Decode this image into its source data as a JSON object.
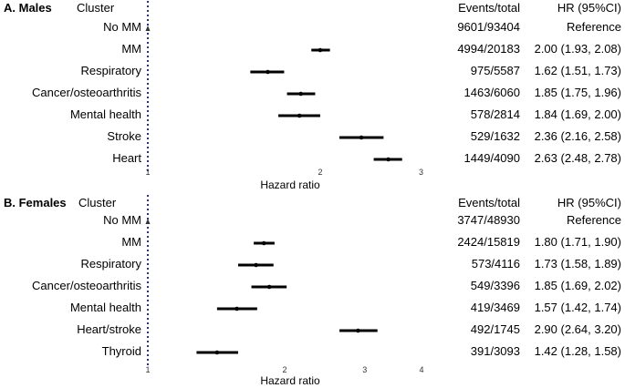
{
  "chart_data": [
    {
      "type": "forest",
      "panel_title": "A. Males",
      "headers": {
        "cluster": "Cluster",
        "events": "Events/total",
        "hr": "HR (95%CI)"
      },
      "xlabel": "Hazard ratio",
      "scale": "log",
      "xlim": [
        1,
        3
      ],
      "ticks": [
        "1",
        "2",
        "3"
      ],
      "tick_values": [
        1,
        2,
        3
      ],
      "rows": [
        {
          "cluster": "No MM",
          "events": "9601/93404",
          "hr_text": "Reference",
          "hr": 1,
          "lo": 1,
          "hi": 1,
          "reference": true
        },
        {
          "cluster": "MM",
          "events": "4994/20183",
          "hr_text": "2.00 (1.93, 2.08)",
          "hr": 2.0,
          "lo": 1.93,
          "hi": 2.08
        },
        {
          "cluster": "Respiratory",
          "events": "975/5587",
          "hr_text": "1.62 (1.51, 1.73)",
          "hr": 1.62,
          "lo": 1.51,
          "hi": 1.73
        },
        {
          "cluster": "Cancer/osteoarthritis",
          "events": "1463/6060",
          "hr_text": "1.85 (1.75, 1.96)",
          "hr": 1.85,
          "lo": 1.75,
          "hi": 1.96
        },
        {
          "cluster": "Mental health",
          "events": "578/2814",
          "hr_text": "1.84 (1.69, 2.00)",
          "hr": 1.84,
          "lo": 1.69,
          "hi": 2.0
        },
        {
          "cluster": "Stroke",
          "events": "529/1632",
          "hr_text": "2.36 (2.16, 2.58)",
          "hr": 2.36,
          "lo": 2.16,
          "hi": 2.58
        },
        {
          "cluster": "Heart",
          "events": "1449/4090",
          "hr_text": "2.63 (2.48, 2.78)",
          "hr": 2.63,
          "lo": 2.48,
          "hi": 2.78
        }
      ]
    },
    {
      "type": "forest",
      "panel_title": "B. Females",
      "headers": {
        "cluster": "Cluster",
        "events": "Events/total",
        "hr": "HR (95%CI)"
      },
      "xlabel": "Hazard ratio",
      "scale": "log",
      "xlim": [
        1,
        4
      ],
      "ticks": [
        "1",
        "2",
        "3",
        "4"
      ],
      "tick_values": [
        1,
        2,
        3,
        4
      ],
      "rows": [
        {
          "cluster": "No MM",
          "events": "3747/48930",
          "hr_text": "Reference",
          "hr": 1,
          "lo": 1,
          "hi": 1,
          "reference": true
        },
        {
          "cluster": "MM",
          "events": "2424/15819",
          "hr_text": "1.80 (1.71, 1.90)",
          "hr": 1.8,
          "lo": 1.71,
          "hi": 1.9
        },
        {
          "cluster": "Respiratory",
          "events": "573/4116",
          "hr_text": "1.73 (1.58, 1.89)",
          "hr": 1.73,
          "lo": 1.58,
          "hi": 1.89
        },
        {
          "cluster": "Cancer/osteoarthritis",
          "events": "549/3396",
          "hr_text": "1.85 (1.69, 2.02)",
          "hr": 1.85,
          "lo": 1.69,
          "hi": 2.02
        },
        {
          "cluster": "Mental health",
          "events": "419/3469",
          "hr_text": "1.57 (1.42, 1.74)",
          "hr": 1.57,
          "lo": 1.42,
          "hi": 1.74
        },
        {
          "cluster": "Heart/stroke",
          "events": "492/1745",
          "hr_text": "2.90 (2.64, 3.20)",
          "hr": 2.9,
          "lo": 2.64,
          "hi": 3.2
        },
        {
          "cluster": "Thyroid",
          "events": "391/3093",
          "hr_text": "1.42 (1.28, 1.58)",
          "hr": 1.42,
          "lo": 1.28,
          "hi": 1.58
        }
      ]
    }
  ],
  "colors": {
    "reference_line": "#2b2b9a",
    "marks": "#000000"
  }
}
